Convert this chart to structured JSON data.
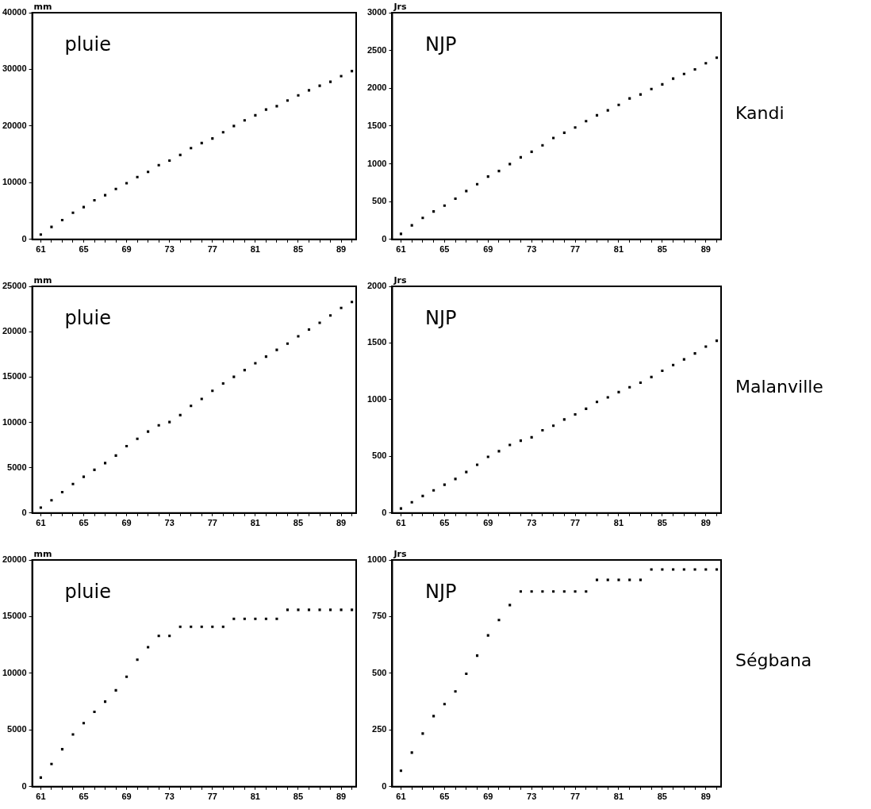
{
  "chart_data": [
    {
      "type": "scatter",
      "title": "pluie",
      "ylabel": "mm",
      "marker": "square",
      "x": [
        61,
        62,
        63,
        64,
        65,
        66,
        67,
        68,
        69,
        70,
        71,
        72,
        73,
        74,
        75,
        76,
        77,
        78,
        79,
        80,
        81,
        82,
        83,
        84,
        85,
        86,
        87,
        88,
        89,
        90
      ],
      "series": [
        {
          "color": "#000000",
          "values": [
            850,
            2200,
            3400,
            4700,
            5700,
            6900,
            7800,
            8900,
            9900,
            11000,
            11900,
            13100,
            13900,
            14900,
            16100,
            17000,
            17800,
            18900,
            20000,
            21000,
            21900,
            22900,
            23500,
            24500,
            25400,
            26300,
            27100,
            27800,
            28800,
            29700
          ]
        }
      ],
      "xlim": [
        60.2,
        90.4
      ],
      "ylim": [
        0,
        40000
      ],
      "yticks": [
        0,
        10000,
        20000,
        30000,
        40000
      ],
      "xticks": [
        61,
        {
          "value": 62,
          "label": null
        },
        {
          "value": 63,
          "label": null
        },
        {
          "value": 64,
          "label": null
        },
        65,
        {
          "value": 66,
          "label": null
        },
        {
          "value": 67,
          "label": null
        },
        {
          "value": 68,
          "label": null
        },
        69,
        {
          "value": 70,
          "label": null
        },
        {
          "value": 71,
          "label": null
        },
        {
          "value": 72,
          "label": null
        },
        73,
        {
          "value": 74,
          "label": null
        },
        {
          "value": 75,
          "label": null
        },
        {
          "value": 76,
          "label": null
        },
        77,
        {
          "value": 78,
          "label": null
        },
        {
          "value": 79,
          "label": null
        },
        {
          "value": 80,
          "label": null
        },
        81,
        {
          "value": 82,
          "label": null
        },
        {
          "value": 83,
          "label": null
        },
        {
          "value": 84,
          "label": null
        },
        85,
        {
          "value": 86,
          "label": null
        },
        {
          "value": 87,
          "label": null
        },
        {
          "value": 88,
          "label": null
        },
        89,
        {
          "value": 90,
          "label": null
        }
      ]
    },
    {
      "type": "scatter",
      "title": "NJP",
      "ylabel": "Jrs",
      "marker": "square",
      "annotations": [
        "Kandi"
      ],
      "x": [
        61,
        62,
        63,
        64,
        65,
        66,
        67,
        68,
        69,
        70,
        71,
        72,
        73,
        74,
        75,
        76,
        77,
        78,
        79,
        80,
        81,
        82,
        83,
        84,
        85,
        86,
        87,
        88,
        89,
        90
      ],
      "series": [
        {
          "color": "#000000",
          "values": [
            73,
            186,
            284,
            369,
            446,
            539,
            640,
            730,
            831,
            904,
            997,
            1086,
            1159,
            1244,
            1342,
            1411,
            1480,
            1565,
            1642,
            1707,
            1780,
            1865,
            1917,
            1990,
            2051,
            2128,
            2189,
            2250,
            2331,
            2404
          ]
        }
      ],
      "xlim": [
        60.2,
        90.4
      ],
      "ylim": [
        0,
        3000
      ],
      "yticks": [
        0,
        500,
        1000,
        1500,
        2000,
        2500,
        3000
      ],
      "xticks": [
        61,
        {
          "value": 62,
          "label": null
        },
        {
          "value": 63,
          "label": null
        },
        {
          "value": 64,
          "label": null
        },
        65,
        {
          "value": 66,
          "label": null
        },
        {
          "value": 67,
          "label": null
        },
        {
          "value": 68,
          "label": null
        },
        69,
        {
          "value": 70,
          "label": null
        },
        {
          "value": 71,
          "label": null
        },
        {
          "value": 72,
          "label": null
        },
        73,
        {
          "value": 74,
          "label": null
        },
        {
          "value": 75,
          "label": null
        },
        {
          "value": 76,
          "label": null
        },
        77,
        {
          "value": 78,
          "label": null
        },
        {
          "value": 79,
          "label": null
        },
        {
          "value": 80,
          "label": null
        },
        81,
        {
          "value": 82,
          "label": null
        },
        {
          "value": 83,
          "label": null
        },
        {
          "value": 84,
          "label": null
        },
        85,
        {
          "value": 86,
          "label": null
        },
        {
          "value": 87,
          "label": null
        },
        {
          "value": 88,
          "label": null
        },
        89,
        {
          "value": 90,
          "label": null
        }
      ]
    },
    {
      "type": "scatter",
      "title": "pluie",
      "ylabel": "mm",
      "marker": "square",
      "x": [
        61,
        62,
        63,
        64,
        65,
        66,
        67,
        68,
        69,
        70,
        71,
        72,
        73,
        74,
        75,
        76,
        77,
        78,
        79,
        80,
        81,
        82,
        83,
        84,
        85,
        86,
        87,
        88,
        89,
        90
      ],
      "series": [
        {
          "color": "#000000",
          "values": [
            600,
            1400,
            2300,
            3200,
            4000,
            4760,
            5500,
            6340,
            7380,
            8180,
            8980,
            9670,
            10030,
            10800,
            11810,
            12580,
            13480,
            14280,
            15020,
            15760,
            16510,
            17250,
            17990,
            18680,
            19490,
            20230,
            20980,
            21780,
            22620,
            23270
          ]
        }
      ],
      "xlim": [
        60.2,
        90.4
      ],
      "ylim": [
        0,
        25000
      ],
      "yticks": [
        0,
        5000,
        10000,
        15000,
        20000,
        25000
      ],
      "xticks": [
        61,
        {
          "value": 62,
          "label": null
        },
        {
          "value": 63,
          "label": null
        },
        {
          "value": 64,
          "label": null
        },
        65,
        {
          "value": 66,
          "label": null
        },
        {
          "value": 67,
          "label": null
        },
        {
          "value": 68,
          "label": null
        },
        69,
        {
          "value": 70,
          "label": null
        },
        {
          "value": 71,
          "label": null
        },
        {
          "value": 72,
          "label": null
        },
        73,
        {
          "value": 74,
          "label": null
        },
        {
          "value": 75,
          "label": null
        },
        {
          "value": 76,
          "label": null
        },
        77,
        {
          "value": 78,
          "label": null
        },
        {
          "value": 79,
          "label": null
        },
        {
          "value": 80,
          "label": null
        },
        81,
        {
          "value": 82,
          "label": null
        },
        {
          "value": 83,
          "label": null
        },
        {
          "value": 84,
          "label": null
        },
        85,
        {
          "value": 86,
          "label": null
        },
        {
          "value": 87,
          "label": null
        },
        {
          "value": 88,
          "label": null
        },
        89,
        {
          "value": 90,
          "label": null
        }
      ]
    },
    {
      "type": "scatter",
      "title": "NJP",
      "ylabel": "Jrs",
      "marker": "square",
      "annotations": [
        "Malanville"
      ],
      "x": [
        61,
        62,
        63,
        64,
        65,
        66,
        67,
        68,
        69,
        70,
        71,
        72,
        73,
        74,
        75,
        76,
        77,
        78,
        79,
        80,
        81,
        82,
        83,
        84,
        85,
        86,
        87,
        88,
        89,
        90
      ],
      "series": [
        {
          "color": "#000000",
          "values": [
            40,
            95,
            150,
            200,
            250,
            300,
            362,
            425,
            495,
            545,
            600,
            638,
            668,
            730,
            770,
            825,
            870,
            920,
            980,
            1020,
            1067,
            1110,
            1150,
            1200,
            1255,
            1305,
            1355,
            1408,
            1468,
            1520
          ]
        }
      ],
      "xlim": [
        60.2,
        90.4
      ],
      "ylim": [
        0,
        2000
      ],
      "yticks": [
        0,
        500,
        1000,
        1500,
        2000
      ],
      "xticks": [
        61,
        {
          "value": 62,
          "label": null
        },
        {
          "value": 63,
          "label": null
        },
        {
          "value": 64,
          "label": null
        },
        65,
        {
          "value": 66,
          "label": null
        },
        {
          "value": 67,
          "label": null
        },
        {
          "value": 68,
          "label": null
        },
        69,
        {
          "value": 70,
          "label": null
        },
        {
          "value": 71,
          "label": null
        },
        {
          "value": 72,
          "label": null
        },
        73,
        {
          "value": 74,
          "label": null
        },
        {
          "value": 75,
          "label": null
        },
        {
          "value": 76,
          "label": null
        },
        77,
        {
          "value": 78,
          "label": null
        },
        {
          "value": 79,
          "label": null
        },
        {
          "value": 80,
          "label": null
        },
        81,
        {
          "value": 82,
          "label": null
        },
        {
          "value": 83,
          "label": null
        },
        {
          "value": 84,
          "label": null
        },
        85,
        {
          "value": 86,
          "label": null
        },
        {
          "value": 87,
          "label": null
        },
        {
          "value": 88,
          "label": null
        },
        89,
        {
          "value": 90,
          "label": null
        }
      ]
    },
    {
      "type": "scatter",
      "title": "pluie",
      "ylabel": "mm",
      "marker": "square",
      "x": [
        61,
        62,
        63,
        64,
        65,
        66,
        67,
        68,
        69,
        70,
        71,
        72,
        73,
        74,
        75,
        76,
        77,
        78,
        79,
        80,
        81,
        82,
        83,
        84,
        85,
        86,
        87,
        88,
        89,
        90
      ],
      "series": [
        {
          "color": "#000000",
          "values": [
            800,
            2000,
            3300,
            4600,
            5600,
            6600,
            7500,
            8500,
            9700,
            11200,
            12300,
            13300,
            13300,
            14100,
            14100,
            14100,
            14100,
            14100,
            14800,
            14800,
            14800,
            14800,
            14800,
            15600,
            15600,
            15600,
            15600,
            15600,
            15600,
            15600
          ]
        }
      ],
      "xlim": [
        60.2,
        90.4
      ],
      "ylim": [
        0,
        20000
      ],
      "yticks": [
        0,
        5000,
        10000,
        15000,
        20000
      ],
      "xticks": [
        61,
        {
          "value": 62,
          "label": null
        },
        {
          "value": 63,
          "label": null
        },
        {
          "value": 64,
          "label": null
        },
        65,
        {
          "value": 66,
          "label": null
        },
        {
          "value": 67,
          "label": null
        },
        {
          "value": 68,
          "label": null
        },
        69,
        {
          "value": 70,
          "label": null
        },
        {
          "value": 71,
          "label": null
        },
        {
          "value": 72,
          "label": null
        },
        73,
        {
          "value": 74,
          "label": null
        },
        {
          "value": 75,
          "label": null
        },
        {
          "value": 76,
          "label": null
        },
        77,
        {
          "value": 78,
          "label": null
        },
        {
          "value": 79,
          "label": null
        },
        {
          "value": 80,
          "label": null
        },
        81,
        {
          "value": 82,
          "label": null
        },
        {
          "value": 83,
          "label": null
        },
        {
          "value": 84,
          "label": null
        },
        85,
        {
          "value": 86,
          "label": null
        },
        {
          "value": 87,
          "label": null
        },
        {
          "value": 88,
          "label": null
        },
        89,
        {
          "value": 90,
          "label": null
        }
      ]
    },
    {
      "type": "scatter",
      "title": "NJP",
      "ylabel": "Jrs",
      "marker": "square",
      "annotations": [
        "Ségbana"
      ],
      "x": [
        61,
        62,
        63,
        64,
        65,
        66,
        67,
        68,
        69,
        70,
        71,
        72,
        73,
        74,
        75,
        76,
        77,
        78,
        79,
        80,
        81,
        82,
        83,
        84,
        85,
        86,
        87,
        88,
        89,
        90
      ],
      "series": [
        {
          "color": "#000000",
          "values": [
            70,
            150,
            234,
            311,
            364,
            420,
            498,
            578,
            667,
            735,
            801,
            861,
            861,
            861,
            861,
            861,
            861,
            861,
            912,
            912,
            912,
            912,
            912,
            958,
            958,
            958,
            958,
            958,
            958,
            958
          ]
        }
      ],
      "xlim": [
        60.2,
        90.4
      ],
      "ylim": [
        0,
        1000
      ],
      "yticks": [
        0,
        250,
        500,
        750,
        1000
      ],
      "xticks": [
        61,
        {
          "value": 62,
          "label": null
        },
        {
          "value": 63,
          "label": null
        },
        {
          "value": 64,
          "label": null
        },
        65,
        {
          "value": 66,
          "label": null
        },
        {
          "value": 67,
          "label": null
        },
        {
          "value": 68,
          "label": null
        },
        69,
        {
          "value": 70,
          "label": null
        },
        {
          "value": 71,
          "label": null
        },
        {
          "value": 72,
          "label": null
        },
        73,
        {
          "value": 74,
          "label": null
        },
        {
          "value": 75,
          "label": null
        },
        {
          "value": 76,
          "label": null
        },
        77,
        {
          "value": 78,
          "label": null
        },
        {
          "value": 79,
          "label": null
        },
        {
          "value": 80,
          "label": null
        },
        81,
        {
          "value": 82,
          "label": null
        },
        {
          "value": 83,
          "label": null
        },
        {
          "value": 84,
          "label": null
        },
        85,
        {
          "value": 86,
          "label": null
        },
        {
          "value": 87,
          "label": null
        },
        {
          "value": 88,
          "label": null
        },
        89,
        {
          "value": 90,
          "label": null
        }
      ]
    }
  ]
}
